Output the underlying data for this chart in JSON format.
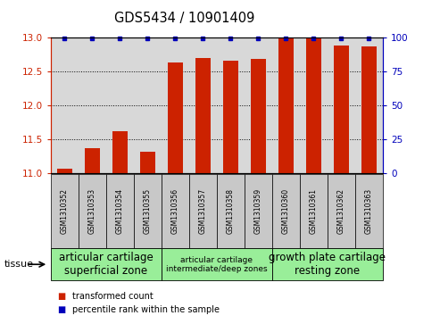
{
  "title": "GDS5434 / 10901409",
  "samples": [
    "GSM1310352",
    "GSM1310353",
    "GSM1310354",
    "GSM1310355",
    "GSM1310356",
    "GSM1310357",
    "GSM1310358",
    "GSM1310359",
    "GSM1310360",
    "GSM1310361",
    "GSM1310362",
    "GSM1310363"
  ],
  "red_values": [
    11.07,
    11.37,
    11.62,
    11.32,
    12.63,
    12.69,
    12.65,
    12.68,
    13.0,
    13.0,
    12.88,
    12.86
  ],
  "blue_percentiles": [
    100,
    100,
    100,
    100,
    100,
    100,
    100,
    100,
    100,
    100,
    100,
    100
  ],
  "ylim_left": [
    11.0,
    13.0
  ],
  "ylim_right": [
    0,
    100
  ],
  "yticks_left": [
    11.0,
    11.5,
    12.0,
    12.5,
    13.0
  ],
  "yticks_right": [
    0,
    25,
    50,
    75,
    100
  ],
  "tissue_groups": [
    {
      "label": "articular cartilage\nsuperficial zone",
      "start": 0,
      "end": 3,
      "fontsize": 8.5
    },
    {
      "label": "articular cartilage\nintermediate/deep zones",
      "start": 4,
      "end": 7,
      "fontsize": 6.5
    },
    {
      "label": "growth plate cartilage\nresting zone",
      "start": 8,
      "end": 11,
      "fontsize": 8.5
    }
  ],
  "tissue_label": "tissue",
  "tissue_bg_color": "#99ee99",
  "bar_bg_color": "#c8c8c8",
  "red_color": "#cc2200",
  "blue_color": "#0000bb",
  "legend_red": "transformed count",
  "legend_blue": "percentile rank within the sample",
  "bar_width": 0.55,
  "title_fontsize": 10.5
}
